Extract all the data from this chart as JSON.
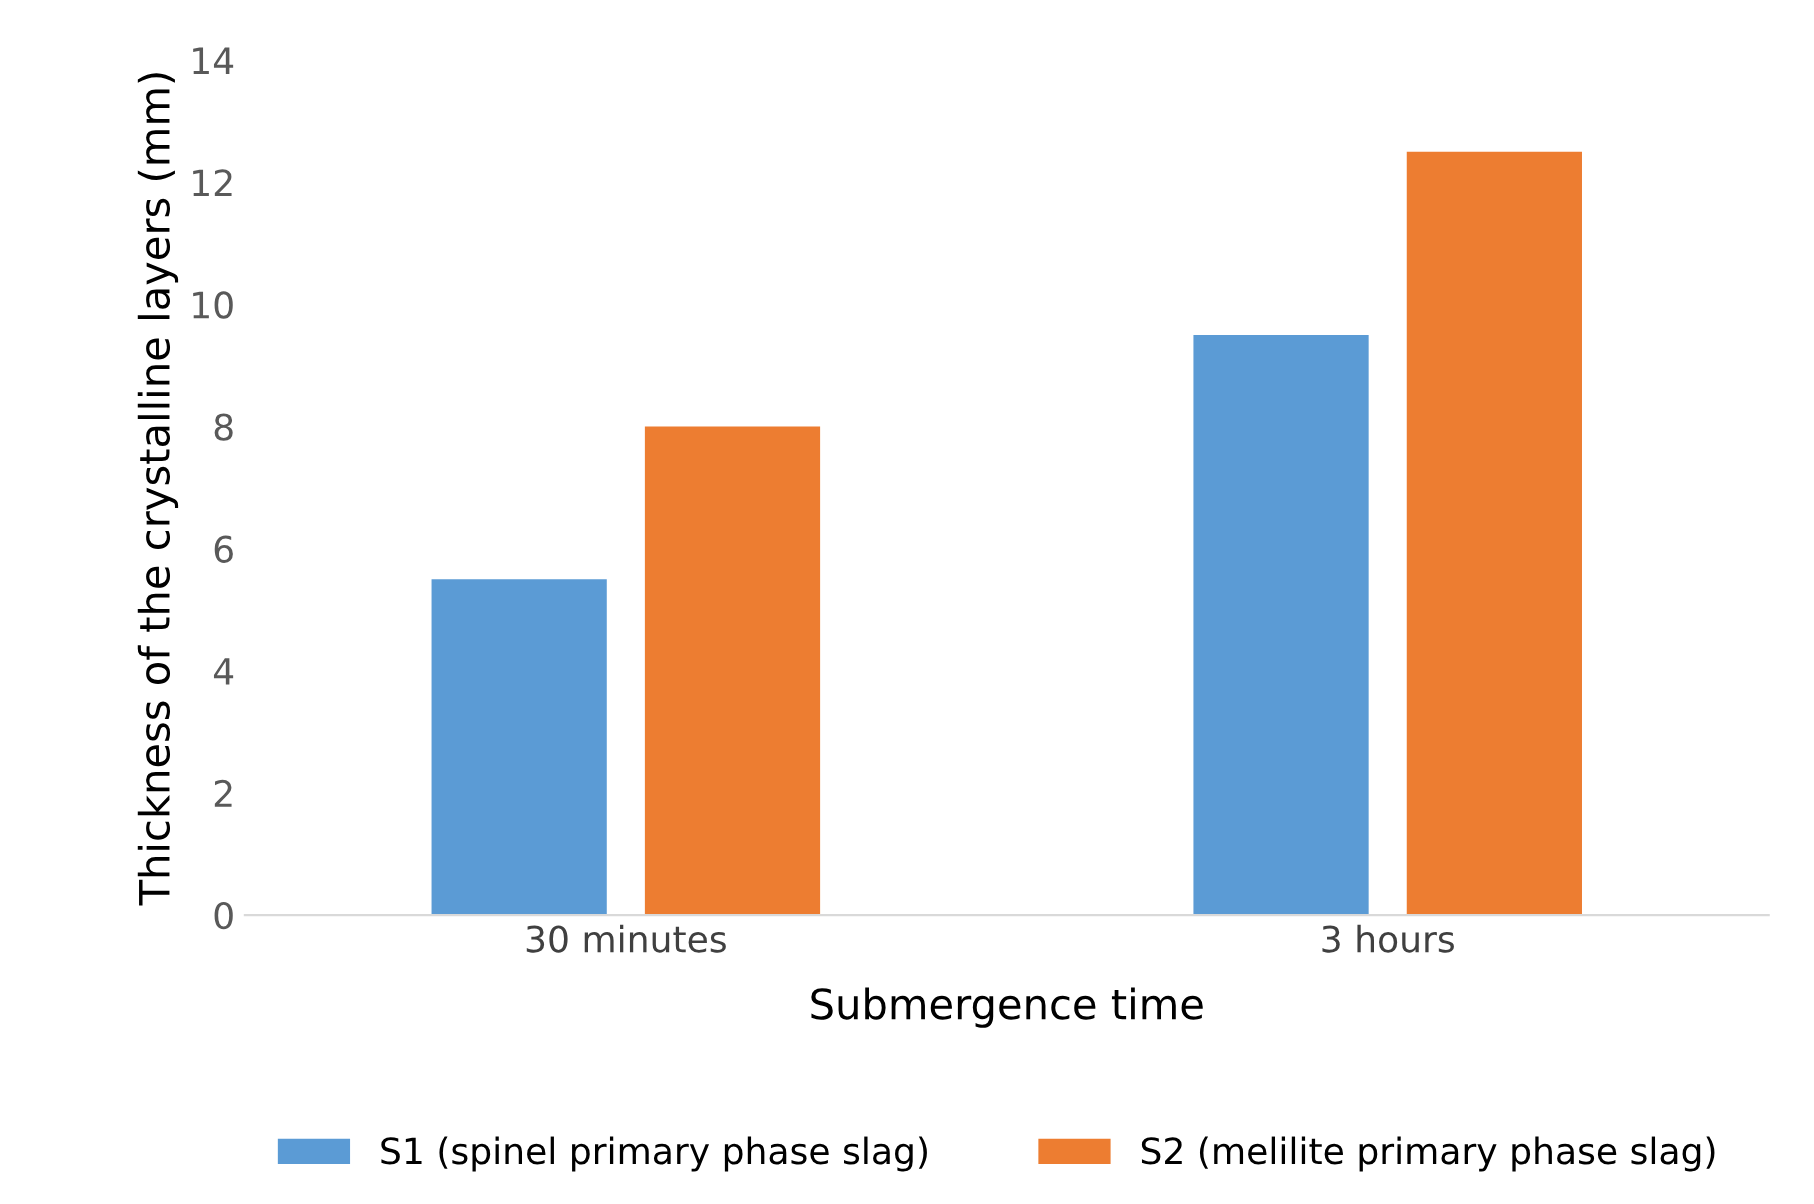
{
  "chart_data": {
    "type": "bar",
    "xlabel": "Submergence time",
    "ylabel": "Thickness of the crystalline layers (mm)",
    "categories": [
      "30 minutes",
      "3 hours"
    ],
    "series": [
      {
        "name": "S1 (spinel primary phase slag)",
        "color": "#5b9bd5",
        "values": [
          5.5,
          9.5
        ]
      },
      {
        "name": "S2 (melilite primary phase slag)",
        "color": "#ed7d31",
        "values": [
          8.0,
          12.5
        ]
      }
    ],
    "ylim": [
      0,
      14
    ],
    "yticks": [
      0,
      2,
      4,
      6,
      8,
      10,
      12,
      14
    ],
    "grid": false,
    "legend": "bottom"
  }
}
